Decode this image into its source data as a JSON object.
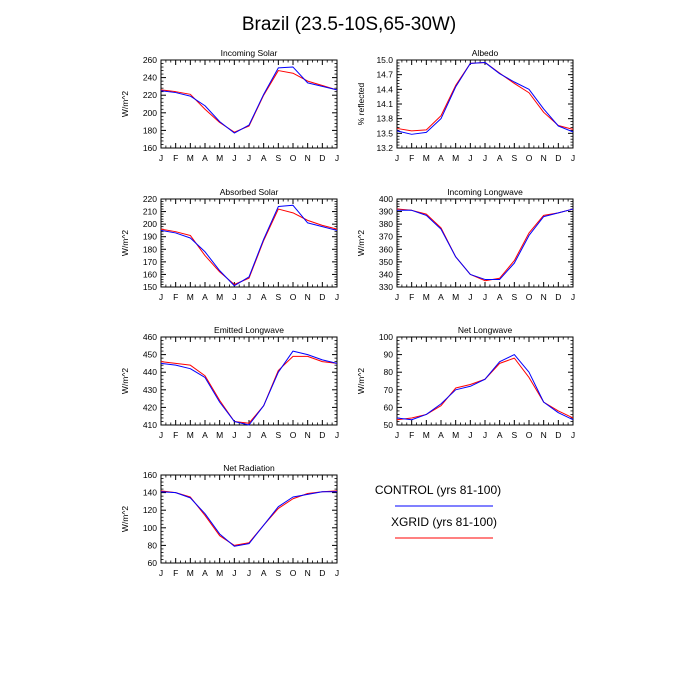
{
  "title": "Brazil (23.5-10S,65-30W)",
  "colors": {
    "control": "#0000ff",
    "xgrid": "#ff0000",
    "axis": "#000000",
    "background": "#ffffff"
  },
  "legend": {
    "entries": [
      {
        "label": "CONTROL (yrs 81-100)",
        "color": "#0000ff"
      },
      {
        "label": "XGRID (yrs 81-100)",
        "color": "#ff0000"
      }
    ]
  },
  "chart_data": [
    {
      "type": "line",
      "title": "Incoming Solar",
      "xlabel": "",
      "ylabel": "W/m^2",
      "categories": [
        "J",
        "F",
        "M",
        "A",
        "M",
        "J",
        "J",
        "A",
        "S",
        "O",
        "N",
        "D",
        "J"
      ],
      "ylim": [
        160,
        260
      ],
      "yticks": [
        "160",
        "180",
        "200",
        "220",
        "240",
        "260"
      ],
      "grid": false,
      "series": [
        {
          "name": "CONTROL (yrs 81-100)",
          "color": "#0000ff",
          "values": [
            225,
            223,
            219,
            208,
            190,
            177,
            186,
            221,
            251,
            252,
            234,
            230,
            226
          ]
        },
        {
          "name": "XGRID (yrs 81-100)",
          "color": "#ff0000",
          "values": [
            226,
            224,
            221,
            204,
            189,
            178,
            185,
            220,
            248,
            245,
            236,
            231,
            226
          ]
        }
      ]
    },
    {
      "type": "line",
      "title": "Albedo",
      "xlabel": "",
      "ylabel": "% reflected",
      "categories": [
        "J",
        "F",
        "M",
        "A",
        "M",
        "J",
        "J",
        "A",
        "S",
        "O",
        "N",
        "D",
        "J"
      ],
      "ylim": [
        13.2,
        15.0
      ],
      "yticks": [
        "13.2",
        "13.5",
        "13.8",
        "14.1",
        "14.4",
        "14.7",
        "15.0"
      ],
      "grid": false,
      "series": [
        {
          "name": "CONTROL (yrs 81-100)",
          "color": "#0000ff",
          "values": [
            13.55,
            13.48,
            13.52,
            13.8,
            14.45,
            14.93,
            14.95,
            14.72,
            14.55,
            14.4,
            14.0,
            13.65,
            13.53
          ]
        },
        {
          "name": "XGRID (yrs 81-100)",
          "color": "#ff0000",
          "values": [
            13.6,
            13.55,
            13.57,
            13.86,
            14.48,
            14.93,
            14.95,
            14.73,
            14.52,
            14.33,
            13.93,
            13.66,
            13.58
          ]
        }
      ]
    },
    {
      "type": "line",
      "title": "Absorbed Solar",
      "xlabel": "",
      "ylabel": "W/m^2",
      "categories": [
        "J",
        "F",
        "M",
        "A",
        "M",
        "J",
        "J",
        "A",
        "S",
        "O",
        "N",
        "D",
        "J"
      ],
      "ylim": [
        150,
        220
      ],
      "yticks": [
        "150",
        "160",
        "170",
        "180",
        "190",
        "200",
        "210",
        "220"
      ],
      "grid": false,
      "series": [
        {
          "name": "CONTROL (yrs 81-100)",
          "color": "#0000ff",
          "values": [
            195,
            193,
            189,
            178,
            163,
            151,
            158,
            188,
            214,
            215,
            201,
            198,
            195
          ]
        },
        {
          "name": "XGRID (yrs 81-100)",
          "color": "#ff0000",
          "values": [
            196,
            194,
            191,
            175,
            162,
            152,
            157,
            187,
            212,
            209,
            203,
            199,
            196
          ]
        }
      ]
    },
    {
      "type": "line",
      "title": "Incoming Longwave",
      "xlabel": "",
      "ylabel": "W/m^2",
      "categories": [
        "J",
        "F",
        "M",
        "A",
        "M",
        "J",
        "J",
        "A",
        "S",
        "O",
        "N",
        "D",
        "J"
      ],
      "ylim": [
        330,
        400
      ],
      "yticks": [
        "330",
        "340",
        "350",
        "360",
        "370",
        "380",
        "390",
        "400"
      ],
      "grid": false,
      "series": [
        {
          "name": "CONTROL (yrs 81-100)",
          "color": "#0000ff",
          "values": [
            391,
            391,
            387,
            376,
            354,
            340,
            336,
            336,
            349,
            371,
            386,
            389,
            392
          ]
        },
        {
          "name": "XGRID (yrs 81-100)",
          "color": "#ff0000",
          "values": [
            392,
            391,
            388,
            377,
            354,
            340,
            335,
            337,
            351,
            373,
            387,
            389,
            392
          ]
        }
      ]
    },
    {
      "type": "line",
      "title": "Emitted Longwave",
      "xlabel": "",
      "ylabel": "W/m^2",
      "categories": [
        "J",
        "F",
        "M",
        "A",
        "M",
        "J",
        "J",
        "A",
        "S",
        "O",
        "N",
        "D",
        "J"
      ],
      "ylim": [
        410,
        460
      ],
      "yticks": [
        "410",
        "420",
        "430",
        "440",
        "450",
        "460"
      ],
      "grid": false,
      "series": [
        {
          "name": "CONTROL (yrs 81-100)",
          "color": "#0000ff",
          "values": [
            445,
            444,
            442,
            437,
            423,
            412,
            410,
            421,
            440,
            452,
            450,
            447,
            445
          ]
        },
        {
          "name": "XGRID (yrs 81-100)",
          "color": "#ff0000",
          "values": [
            446,
            445,
            444,
            438,
            424,
            412,
            411,
            421,
            441,
            449,
            449,
            446,
            445
          ]
        }
      ]
    },
    {
      "type": "line",
      "title": "Net Longwave",
      "xlabel": "",
      "ylabel": "W/m^2",
      "categories": [
        "J",
        "F",
        "M",
        "A",
        "M",
        "J",
        "J",
        "A",
        "S",
        "O",
        "N",
        "D",
        "J"
      ],
      "ylim": [
        50,
        100
      ],
      "yticks": [
        "50",
        "60",
        "70",
        "80",
        "90",
        "100"
      ],
      "grid": false,
      "series": [
        {
          "name": "CONTROL (yrs 81-100)",
          "color": "#0000ff",
          "values": [
            54,
            53,
            56,
            62,
            70,
            72,
            76,
            86,
            90,
            80,
            63,
            57,
            53
          ]
        },
        {
          "name": "XGRID (yrs 81-100)",
          "color": "#ff0000",
          "values": [
            53,
            54,
            56,
            61,
            71,
            73,
            76,
            85,
            88,
            77,
            63,
            58,
            54
          ]
        }
      ]
    },
    {
      "type": "line",
      "title": "Net Radiation",
      "xlabel": "",
      "ylabel": "W/m^2",
      "categories": [
        "J",
        "F",
        "M",
        "A",
        "M",
        "J",
        "J",
        "A",
        "S",
        "O",
        "N",
        "D",
        "J"
      ],
      "ylim": [
        60,
        160
      ],
      "yticks": [
        "60",
        "80",
        "100",
        "120",
        "140",
        "160"
      ],
      "grid": false,
      "series": [
        {
          "name": "CONTROL (yrs 81-100)",
          "color": "#0000ff",
          "values": [
            141,
            140,
            134,
            116,
            93,
            79,
            82,
            103,
            124,
            135,
            138,
            141,
            141
          ]
        },
        {
          "name": "XGRID (yrs 81-100)",
          "color": "#ff0000",
          "values": [
            142,
            140,
            135,
            114,
            91,
            80,
            83,
            103,
            122,
            133,
            139,
            141,
            142
          ]
        }
      ]
    }
  ]
}
